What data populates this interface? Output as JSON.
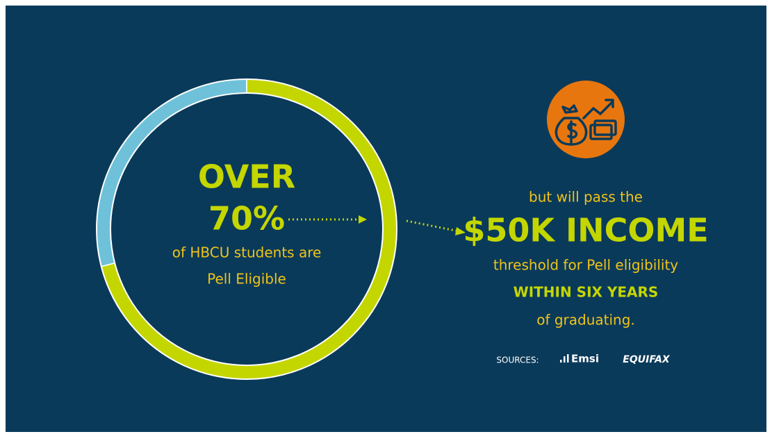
{
  "ring": {
    "values": [
      71,
      29
    ],
    "colors": [
      "#c4d600",
      "#6fc1d9"
    ]
  },
  "left": {
    "headline_1": "OVER",
    "headline_2": "70%",
    "line_1": "of HBCU students are",
    "line_2": "Pell Eligible"
  },
  "right": {
    "line_1": "but will pass the",
    "headline": "$50K INCOME",
    "line_2": "threshold for Pell eligibility",
    "emphasis": "WITHIN SIX YEARS",
    "line_3": "of graduating."
  },
  "sources": {
    "label": "SOURCES:",
    "items": [
      "Emsi",
      "EQUIFAX"
    ]
  }
}
